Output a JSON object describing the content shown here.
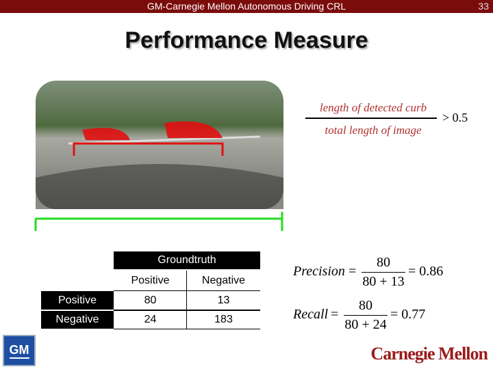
{
  "header": {
    "title": "GM-Carnegie Mellon Autonomous Driving CRL",
    "page_number": "33"
  },
  "title": "Performance Measure",
  "criterion": {
    "numerator": "length of detected curb",
    "denominator": "total length of image",
    "condition": "> 0.5"
  },
  "table": {
    "group_header": "Groundtruth",
    "columns": [
      "Positive",
      "Negative"
    ],
    "rows": [
      [
        "Positive",
        "80",
        "13"
      ],
      [
        "Negative",
        "24",
        "183"
      ]
    ]
  },
  "precision": {
    "label": "Precision",
    "numerator": "80",
    "denominator": "80 + 13",
    "result": "= 0.86"
  },
  "recall": {
    "label": "Recall",
    "numerator": "80",
    "denominator": "80 + 24",
    "result": "= 0.77"
  },
  "logos": {
    "left": "GM",
    "right": "Carnegie Mellon"
  }
}
